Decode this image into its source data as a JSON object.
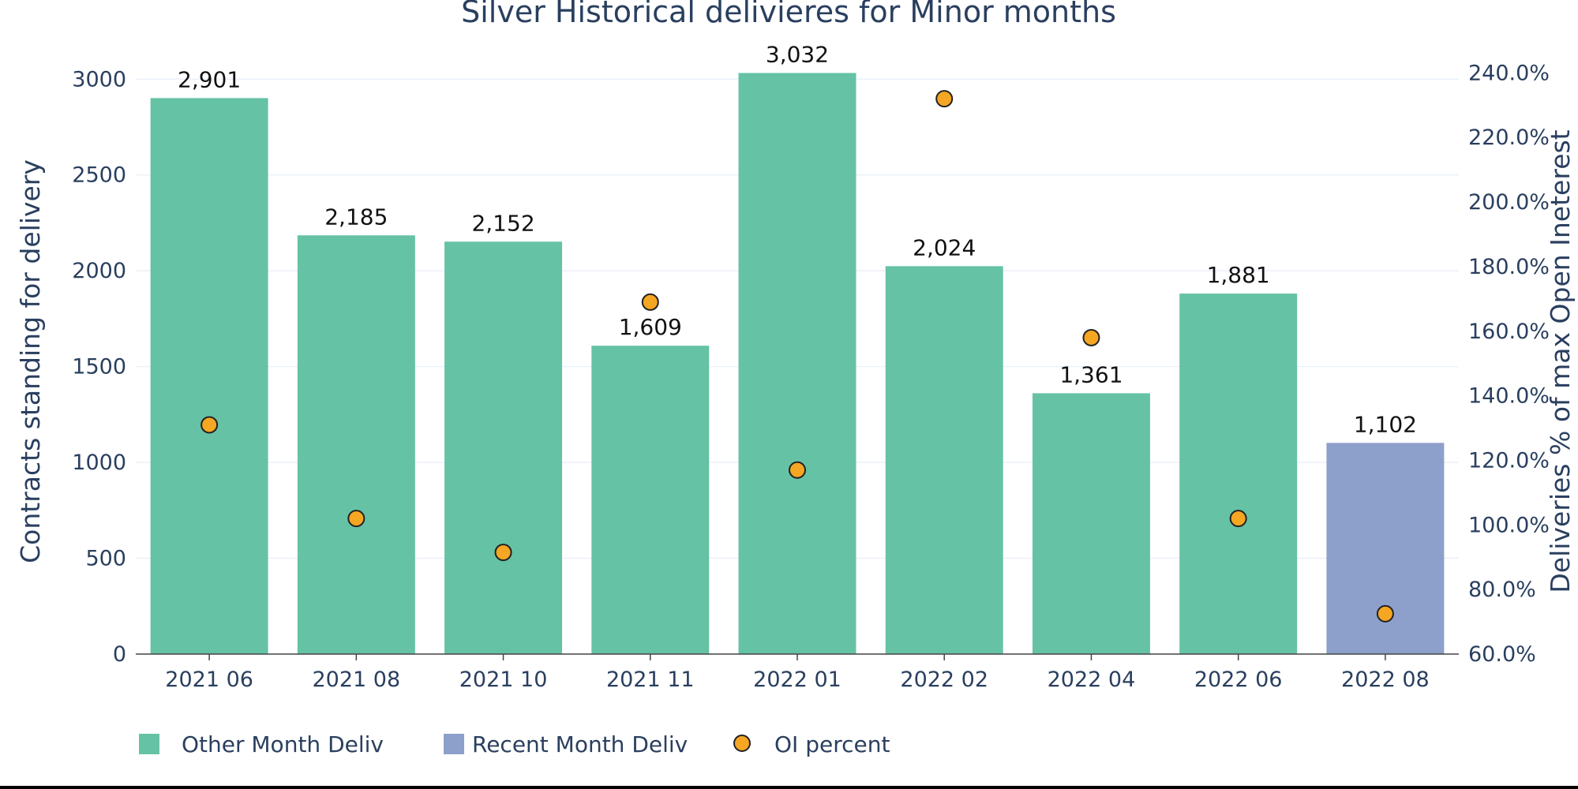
{
  "chart_data": {
    "type": "bar",
    "title": "Silver Historical delivieres for Minor months",
    "ylabel": "Contracts standing for delivery",
    "y2label": "Deliveries % of max Open Ineterest",
    "ylim": [
      0,
      3100
    ],
    "y2lim": [
      60,
      244
    ],
    "yticks": [
      "0",
      "500",
      "1000",
      "1500",
      "2000",
      "2500",
      "3000"
    ],
    "y2ticks": [
      "60.0%",
      "80.0%",
      "100.0%",
      "120.0%",
      "140.0%",
      "160.0%",
      "180.0%",
      "200.0%",
      "220.0%",
      "240.0%"
    ],
    "categories": [
      "2021 06",
      "2021 08",
      "2021 10",
      "2021 11",
      "2022 01",
      "2022 02",
      "2022 04",
      "2022 06",
      "2022 08"
    ],
    "grid": true,
    "legend_position": "bottom-left",
    "series": [
      {
        "name": "Other Month Deliv",
        "type": "bar",
        "color": "#66c2a5",
        "values": [
          2901,
          2185,
          2152,
          1609,
          3032,
          2024,
          1361,
          1881,
          null
        ],
        "labels": [
          "2,901",
          "2,185",
          "2,152",
          "1,609",
          "3,032",
          "2,024",
          "1,361",
          "1,881",
          ""
        ]
      },
      {
        "name": "Recent Month Deliv",
        "type": "bar",
        "color": "#8da0cb",
        "values": [
          null,
          null,
          null,
          null,
          null,
          null,
          null,
          null,
          1102
        ],
        "labels": [
          "",
          "",
          "",
          "",
          "",
          "",
          "",
          "",
          "1,102"
        ]
      },
      {
        "name": "OI percent",
        "type": "scatter",
        "axis": "y2",
        "color": "#f5a623",
        "values": [
          131,
          102,
          91.5,
          169,
          117,
          232,
          158,
          102,
          72.5
        ]
      }
    ]
  }
}
